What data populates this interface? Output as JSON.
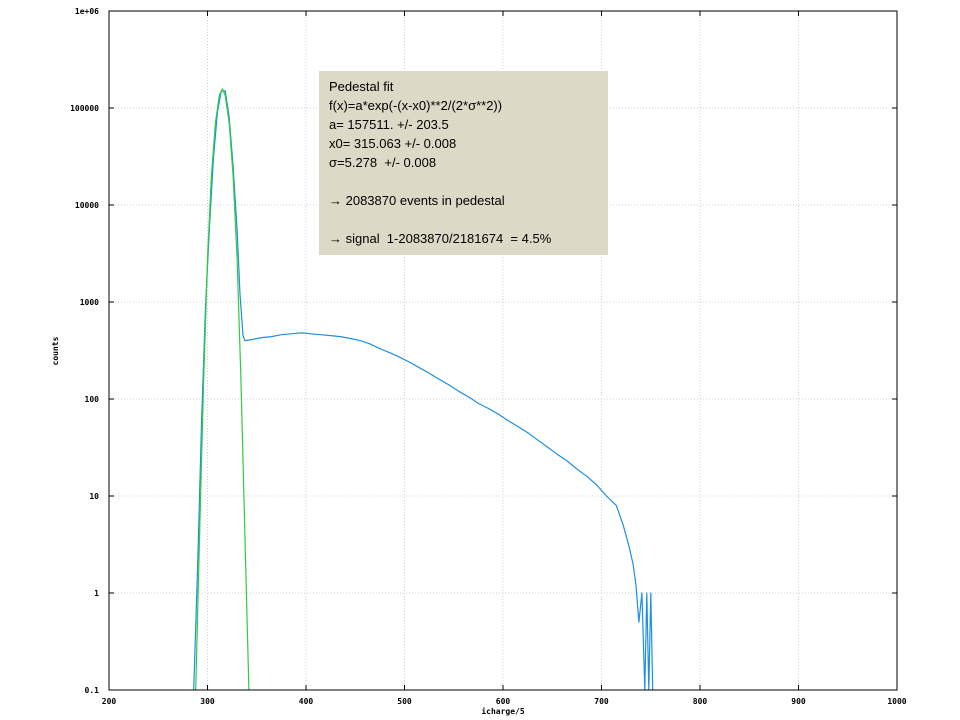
{
  "chart_data": {
    "type": "line",
    "xlabel": "icharge/5",
    "ylabel": "counts",
    "xlim": [
      200,
      1000
    ],
    "ylim": [
      0.1,
      1000000
    ],
    "yscale": "log",
    "grid": true,
    "x_ticks": [
      "200",
      "300",
      "400",
      "500",
      "600",
      "700",
      "800",
      "900",
      "1000"
    ],
    "y_ticks": [
      "0.1",
      "1",
      "10",
      "100",
      "1000",
      "10000",
      "100000",
      "1e+06"
    ],
    "series": [
      {
        "color": "#1f8fe0",
        "points": [
          [
            286,
            0.1
          ],
          [
            290,
            2
          ],
          [
            294,
            60
          ],
          [
            298,
            900
          ],
          [
            302,
            6000
          ],
          [
            306,
            30000
          ],
          [
            310,
            90000
          ],
          [
            314,
            150000
          ],
          [
            318,
            150000
          ],
          [
            322,
            80000
          ],
          [
            326,
            25000
          ],
          [
            330,
            5500
          ],
          [
            333,
            1200
          ],
          [
            336,
            450
          ],
          [
            338,
            400
          ],
          [
            345,
            410
          ],
          [
            355,
            430
          ],
          [
            365,
            440
          ],
          [
            375,
            460
          ],
          [
            385,
            470
          ],
          [
            395,
            480
          ],
          [
            405,
            470
          ],
          [
            415,
            460
          ],
          [
            425,
            450
          ],
          [
            435,
            440
          ],
          [
            445,
            420
          ],
          [
            455,
            400
          ],
          [
            465,
            370
          ],
          [
            475,
            330
          ],
          [
            485,
            300
          ],
          [
            495,
            270
          ],
          [
            505,
            240
          ],
          [
            515,
            210
          ],
          [
            525,
            185
          ],
          [
            535,
            160
          ],
          [
            545,
            140
          ],
          [
            555,
            120
          ],
          [
            565,
            105
          ],
          [
            575,
            90
          ],
          [
            585,
            80
          ],
          [
            595,
            70
          ],
          [
            605,
            60
          ],
          [
            615,
            52
          ],
          [
            625,
            45
          ],
          [
            635,
            38
          ],
          [
            645,
            32
          ],
          [
            655,
            27
          ],
          [
            665,
            23
          ],
          [
            675,
            19
          ],
          [
            685,
            16
          ],
          [
            695,
            13
          ],
          [
            705,
            10
          ],
          [
            715,
            8
          ],
          [
            722,
            5
          ],
          [
            728,
            3
          ],
          [
            732,
            2
          ],
          [
            735,
            1.2
          ],
          [
            738,
            0.5
          ],
          [
            741,
            1
          ],
          [
            744,
            0.1
          ],
          [
            746,
            1
          ],
          [
            748,
            0.1
          ],
          [
            750,
            1
          ],
          [
            752,
            0.1
          ]
        ]
      },
      {
        "name": "Pedestal fit",
        "color": "#2ecc40",
        "points": [
          [
            288,
            0.1
          ],
          [
            292,
            4
          ],
          [
            296,
            150
          ],
          [
            300,
            2800
          ],
          [
            304,
            20000
          ],
          [
            308,
            70000
          ],
          [
            312,
            135000
          ],
          [
            315,
            157511
          ],
          [
            318,
            135000
          ],
          [
            322,
            70000
          ],
          [
            326,
            20000
          ],
          [
            330,
            2800
          ],
          [
            334,
            150
          ],
          [
            338,
            4
          ],
          [
            342,
            0.1
          ]
        ]
      }
    ]
  },
  "fit_box": {
    "lines": [
      "Pedestal fit",
      "f(x)=a*exp(-(x-x0)**2/(2*σ**2))",
      "a= 157511. +/- 203.5",
      "x0= 315.063 +/- 0.008",
      "σ=5.278  +/- 0.008",
      "",
      "→ 2083870 events in pedestal",
      "",
      "→ signal  1-2083870/2181674  = 4.5%"
    ]
  }
}
